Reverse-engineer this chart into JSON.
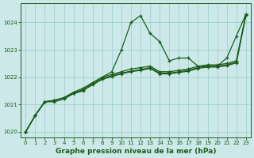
{
  "bg_color": "#cce8e8",
  "grid_color": "#99cccc",
  "line_color": "#1a5c1a",
  "title": "Graphe pression niveau de la mer (hPa)",
  "xlim": [
    -0.5,
    23.5
  ],
  "ylim": [
    1019.8,
    1024.7
  ],
  "yticks": [
    1020,
    1021,
    1022,
    1023,
    1024
  ],
  "xticks": [
    0,
    1,
    2,
    3,
    4,
    5,
    6,
    7,
    8,
    9,
    10,
    11,
    12,
    13,
    14,
    15,
    16,
    17,
    18,
    19,
    20,
    21,
    22,
    23
  ],
  "series_main": [
    1020.0,
    1020.6,
    1021.1,
    1021.1,
    1021.2,
    1021.4,
    1021.5,
    1021.8,
    1022.0,
    1022.2,
    1023.0,
    1024.0,
    1024.25,
    1023.6,
    1023.3,
    1022.6,
    1022.7,
    1022.7,
    1022.4,
    1022.4,
    1022.4,
    1022.7,
    1023.5,
    1024.3
  ],
  "series_b": [
    1020.0,
    1020.6,
    1021.1,
    1021.15,
    1021.25,
    1021.45,
    1021.6,
    1021.8,
    1022.0,
    1022.1,
    1022.2,
    1022.3,
    1022.35,
    1022.4,
    1022.2,
    1022.2,
    1022.25,
    1022.3,
    1022.4,
    1022.45,
    1022.45,
    1022.5,
    1022.6,
    1024.3
  ],
  "series_c": [
    1020.0,
    1020.6,
    1021.1,
    1021.15,
    1021.25,
    1021.42,
    1021.55,
    1021.75,
    1021.95,
    1022.05,
    1022.15,
    1022.22,
    1022.28,
    1022.35,
    1022.15,
    1022.15,
    1022.2,
    1022.25,
    1022.35,
    1022.4,
    1022.4,
    1022.45,
    1022.55,
    1024.28
  ],
  "series_d": [
    1020.0,
    1020.6,
    1021.1,
    1021.15,
    1021.25,
    1021.4,
    1021.52,
    1021.72,
    1021.92,
    1022.02,
    1022.12,
    1022.2,
    1022.25,
    1022.32,
    1022.12,
    1022.12,
    1022.17,
    1022.22,
    1022.32,
    1022.37,
    1022.37,
    1022.42,
    1022.52,
    1024.26
  ]
}
